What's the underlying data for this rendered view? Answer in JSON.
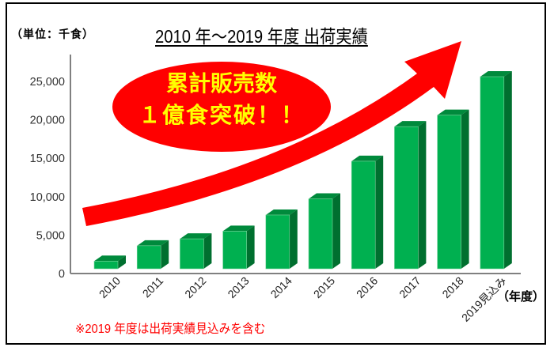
{
  "header": {
    "unit_label": "（単位：千食）",
    "title": "2010 年～2019 年度  出荷実績"
  },
  "callout": {
    "line1": "累計販売数",
    "line2": "１億食突破！！"
  },
  "axis": {
    "x_unit_label": "（年度）"
  },
  "footnote": "※2019 年度は出荷実績見込みを含む",
  "colors": {
    "bar_front": "#00b050",
    "bar_top": "#008a3c",
    "bar_side": "#006f2f",
    "arrow": "#ff0000",
    "callout_text": "#ffff00",
    "footnote": "#ff0000"
  },
  "chart_data": {
    "type": "bar",
    "title": "2010 年～2019 年度  出荷実績",
    "xlabel": "（年度）",
    "ylabel": "（単位：千食）",
    "categories": [
      "2010",
      "2011",
      "2012",
      "2013",
      "2014",
      "2015",
      "2016",
      "2017",
      "2018",
      "2019見込み"
    ],
    "values": [
      1000,
      3000,
      3900,
      4900,
      7000,
      9100,
      14000,
      18500,
      20000,
      25000
    ],
    "yticks": [
      "0",
      "5,000",
      "10,000",
      "15,000",
      "20,000",
      "25,000"
    ],
    "ylim": [
      0,
      25000
    ],
    "grid": false,
    "style": "3d-column",
    "annotations": [
      "累計販売数 １億食突破！！",
      "※2019 年度は出荷実績見込みを含む"
    ]
  }
}
